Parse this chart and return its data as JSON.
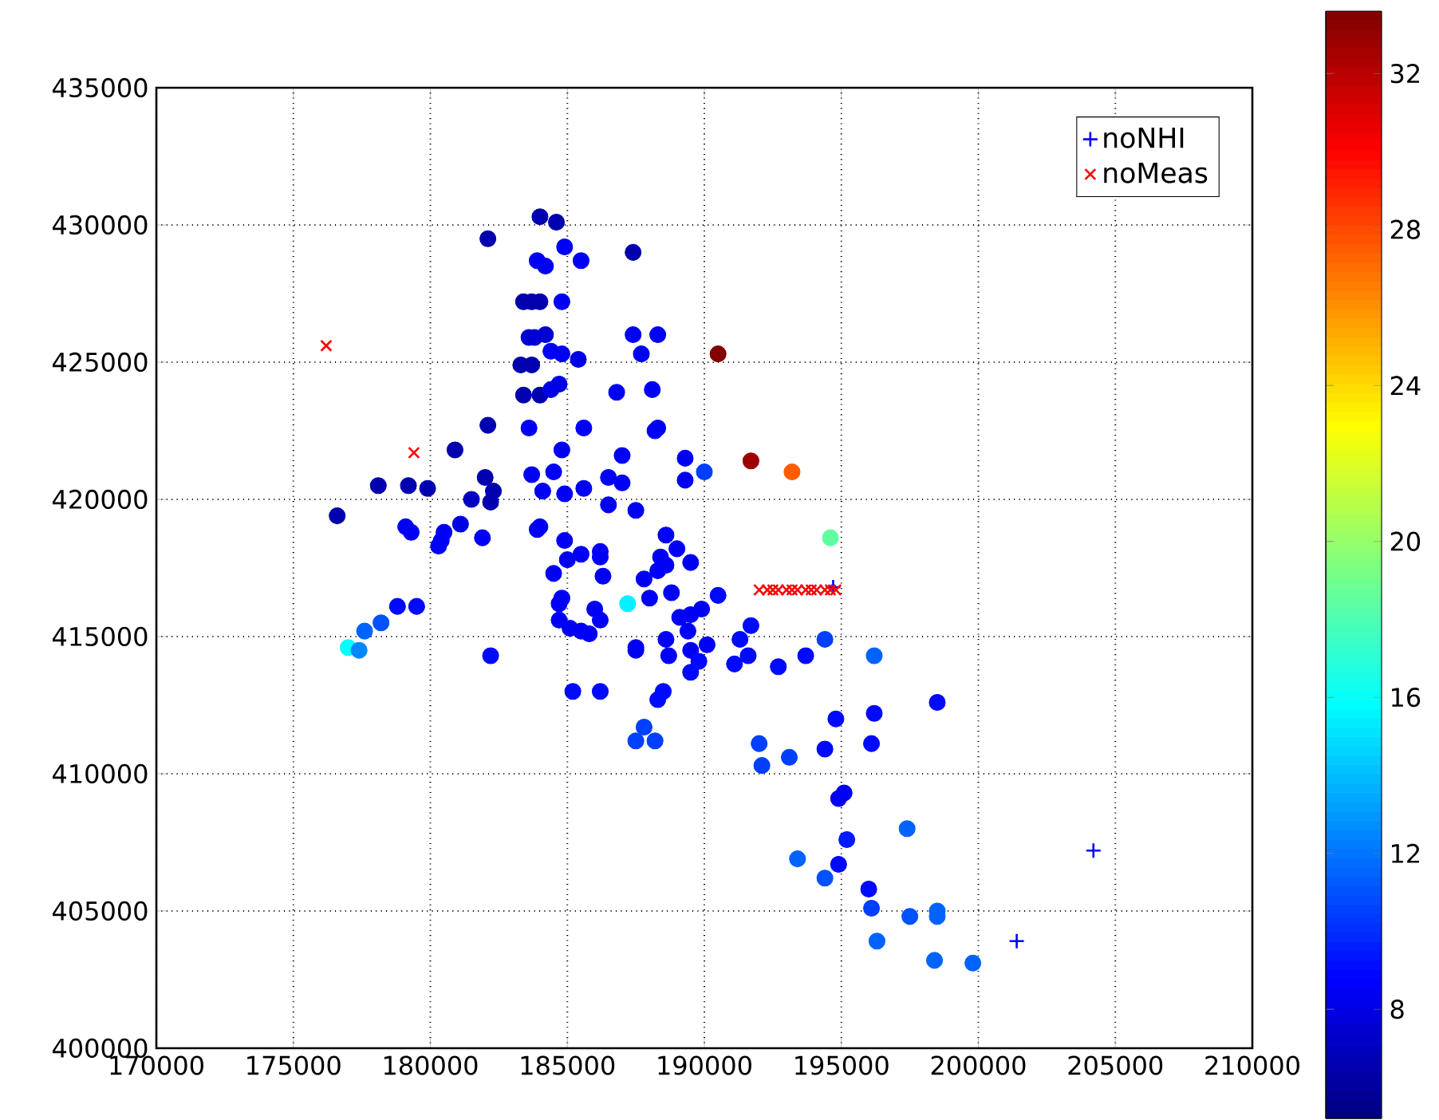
{
  "chart_data": {
    "type": "scatter",
    "xlim": [
      170000,
      210000
    ],
    "ylim": [
      400000,
      435000
    ],
    "xticks": [
      170000,
      175000,
      180000,
      185000,
      190000,
      195000,
      200000,
      205000,
      210000
    ],
    "yticks": [
      400000,
      405000,
      410000,
      415000,
      420000,
      425000,
      430000,
      435000
    ],
    "clim": [
      5.2,
      33.6
    ],
    "cticks": [
      8,
      12,
      16,
      20,
      24,
      28,
      32
    ],
    "grid": true,
    "legend": "top right",
    "series": [
      {
        "marker": "circle",
        "x": [
          184000,
          184600,
          182100,
          184900,
          183900,
          184200,
          185500,
          187400,
          183400,
          183700,
          184000,
          184800,
          183600,
          183800,
          184200,
          187400,
          188300,
          184400,
          184800,
          185400,
          187700,
          183300,
          183700,
          190500,
          183400,
          184000,
          184400,
          184700,
          186800,
          188100,
          182100,
          183600,
          185600,
          188200,
          188300,
          180900,
          184800,
          187000,
          189300,
          191700,
          190000,
          189300,
          193200,
          178100,
          179200,
          179900,
          182000,
          182300,
          181500,
          182200,
          183700,
          184500,
          184100,
          184900,
          185600,
          186500,
          187000,
          186500,
          187500,
          176600,
          179100,
          179300,
          180500,
          180400,
          180300,
          181100,
          181900,
          183900,
          184000,
          184900,
          185000,
          185500,
          186200,
          186200,
          184500,
          186300,
          187800,
          188600,
          189000,
          188400,
          188600,
          188300,
          189500,
          188800,
          188000,
          190500,
          187200,
          184800,
          184700,
          186000,
          186200,
          184700,
          185100,
          185500,
          185800,
          189100,
          189500,
          189900,
          189400,
          178800,
          179500,
          178200,
          177600,
          177000,
          177400,
          182200,
          188600,
          187500,
          187500,
          188700,
          189500,
          190100,
          189800,
          189500,
          191300,
          191700,
          191600,
          191100,
          192700,
          185200,
          186200,
          188500,
          188300,
          187800,
          187500,
          188200,
          192000,
          192100,
          194600,
          193700,
          194400,
          196200,
          198500,
          194800,
          196200,
          193100,
          194400,
          196100,
          195100,
          194900,
          197400,
          195200,
          193400,
          194900,
          194400,
          196000,
          196100,
          197500,
          198500,
          198500,
          196300,
          198400,
          199800
        ],
        "values": [
          430300,
          430100,
          429500,
          429200,
          428700,
          428500,
          428700,
          429000,
          427200,
          427200,
          427200,
          427200,
          425900,
          425900,
          426000,
          426000,
          426000,
          425400,
          425300,
          425100,
          425300,
          424900,
          424900,
          425300,
          423800,
          423800,
          424000,
          424200,
          423900,
          424000,
          422700,
          422600,
          422600,
          422500,
          422600,
          421800,
          421800,
          421600,
          421500,
          421400,
          421000,
          420700,
          421000,
          420500,
          420500,
          420400,
          420800,
          420300,
          420000,
          419900,
          420900,
          421000,
          420300,
          420200,
          420400,
          420800,
          420600,
          419800,
          419600,
          419400,
          419000,
          418800,
          418800,
          418500,
          418300,
          419100,
          418600,
          418900,
          419000,
          418500,
          417800,
          418000,
          418100,
          417900,
          417300,
          417200,
          417100,
          418700,
          418200,
          417900,
          417600,
          417400,
          417700,
          416600,
          416400,
          416500,
          416200,
          416400,
          416200,
          416000,
          415600,
          415600,
          415300,
          415200,
          415100,
          415700,
          415800,
          416000,
          415200,
          416100,
          416100,
          415500,
          415200,
          414600,
          414500,
          414300,
          414900,
          414600,
          414500,
          414300,
          414500,
          414700,
          414100,
          413700,
          414900,
          415400,
          414300,
          414000,
          413900,
          413000,
          413000,
          413000,
          412700,
          411700,
          411200,
          411200,
          411100,
          410300,
          418600,
          414300,
          414900,
          414300,
          412600,
          412000,
          412200,
          410600,
          410900,
          411100,
          409300,
          409100,
          408000,
          407600,
          406900,
          406700,
          406200,
          405800,
          405100,
          404800,
          405000,
          404800,
          403900,
          403200,
          403100
        ],
        "colors": [
          "#0000ae",
          "#0000ae",
          "#0000ae",
          "#0000f6",
          "#0000f6",
          "#0000f6",
          "#0000f6",
          "#0000ae",
          "#0000ae",
          "#0000ae",
          "#0000ae",
          "#0000f6",
          "#0000d2",
          "#0000d2",
          "#0000d2",
          "#0000f6",
          "#0000f6",
          "#0000f6",
          "#0000f6",
          "#0000e4",
          "#0000f6",
          "#0000ae",
          "#0000ae",
          "#830000",
          "#0000ae",
          "#0000ae",
          "#0000e4",
          "#0000e4",
          "#0000f6",
          "#0000f6",
          "#0000ae",
          "#0000f6",
          "#0000f6",
          "#0000f6",
          "#0000f6",
          "#0000ae",
          "#0000f6",
          "#0000f6",
          "#0000f6",
          "#9d0000",
          "#003fff",
          "#0000f6",
          "#ff5c00",
          "#0000ae",
          "#0000ae",
          "#0000ae",
          "#0000ae",
          "#0000ae",
          "#0000c0",
          "#0000ae",
          "#0000f6",
          "#0000f6",
          "#0000f6",
          "#0000f6",
          "#0000f6",
          "#0000f6",
          "#0000f6",
          "#0000f6",
          "#0000f6",
          "#0000ae",
          "#0000f6",
          "#0000f6",
          "#0000f6",
          "#0000f6",
          "#0000f6",
          "#0000e4",
          "#0000f6",
          "#0000f6",
          "#0000f6",
          "#0000f6",
          "#0000f6",
          "#0000f6",
          "#0000f6",
          "#0000f6",
          "#0000f6",
          "#0000f6",
          "#0000f6",
          "#0000f6",
          "#0000f6",
          "#0000f6",
          "#0000f6",
          "#0000f6",
          "#0000f6",
          "#0000f6",
          "#0000f6",
          "#0009ff",
          "#00f2ff",
          "#0000f6",
          "#0000f6",
          "#0000f6",
          "#0000f6",
          "#0000f6",
          "#0000f6",
          "#0000f6",
          "#0000f6",
          "#0000f6",
          "#0000f6",
          "#0000f6",
          "#0000f6",
          "#0009ff",
          "#0009ff",
          "#0051ff",
          "#0063ff",
          "#05fffa",
          "#0087ff",
          "#0009ff",
          "#0000f6",
          "#0000f6",
          "#0000f6",
          "#0000f6",
          "#0000f6",
          "#0000f6",
          "#0009ff",
          "#0009ff",
          "#0009ff",
          "#0009ff",
          "#0009ff",
          "#0009ff",
          "#0009ff",
          "#0009ff",
          "#0009ff",
          "#0009ff",
          "#0009ff",
          "#003fff",
          "#003fff",
          "#003fff",
          "#003fff",
          "#003fff",
          "#5fffa0",
          "#0009ff",
          "#003fff",
          "#0063ff",
          "#0009ff",
          "#0009ff",
          "#0009ff",
          "#003fff",
          "#0009ff",
          "#0009ff",
          "#0000f6",
          "#0000f6",
          "#0063ff",
          "#001bff",
          "#0063ff",
          "#0009ff",
          "#0051ff",
          "#0009ff",
          "#003fff",
          "#0051ff",
          "#0063ff",
          "#0063ff",
          "#0063ff",
          "#0063ff",
          "#0063ff"
        ],
        "cvalues": [
          6.5,
          6.5,
          6.5,
          8.5,
          8.5,
          8.5,
          8.5,
          6.5,
          6.5,
          6.5,
          6.5,
          8.5,
          7.5,
          7.5,
          7.5,
          8.5,
          8.5,
          8.5,
          8.5,
          8,
          8.5,
          6.5,
          6.5,
          33.5,
          6.5,
          6.5,
          8,
          8,
          8.5,
          8.5,
          6.5,
          8.5,
          8.5,
          8.5,
          8.5,
          6.5,
          8.5,
          8.5,
          8.5,
          32.8,
          10.5,
          8.5,
          27.5,
          6.5,
          6.5,
          6.5,
          6.5,
          6.5,
          7,
          6.5,
          8.5,
          8.5,
          8.5,
          8.5,
          8.5,
          8.5,
          8.5,
          8.5,
          8.5,
          6.5,
          8.5,
          8.5,
          8.5,
          8.5,
          8.5,
          8,
          8.5,
          8.5,
          8.5,
          8.5,
          8.5,
          8.5,
          8.5,
          8.5,
          8.5,
          8.5,
          8.5,
          8.5,
          8.5,
          8.5,
          8.5,
          8.5,
          8.5,
          8.5,
          8.5,
          9,
          15.5,
          8.5,
          8.5,
          8.5,
          8.5,
          8.5,
          8.5,
          8.5,
          8.5,
          8.5,
          8.5,
          8.5,
          8.5,
          9,
          9,
          11,
          11.5,
          16,
          12.5,
          9,
          8.5,
          8.5,
          8.5,
          8.5,
          8.5,
          8.5,
          9,
          9,
          9,
          9,
          9,
          9,
          9,
          9,
          9,
          9,
          9,
          10.5,
          10.5,
          10.5,
          10.5,
          10.5,
          18.5,
          9,
          10.5,
          11.5,
          9,
          9,
          9,
          10.5,
          9,
          9,
          8.5,
          8.5,
          11.5,
          9.5,
          11.5,
          9,
          11,
          9,
          10.5,
          11,
          11.5,
          11.5,
          11.5,
          11.5,
          11.5
        ]
      },
      {
        "name": "noNHI",
        "color": "#0000ff",
        "marker": "plus",
        "x": [
          194700,
          204200,
          201400
        ],
        "values": [
          416800,
          407200,
          403900
        ]
      },
      {
        "name": "noMeas",
        "color": "#ff0000",
        "marker": "cross",
        "x": [
          176200,
          179400,
          192000,
          192300,
          192500,
          192700,
          193000,
          193200,
          193400,
          193700,
          193900,
          194100,
          194400,
          194600,
          194800
        ],
        "values": [
          425600,
          421700,
          416700,
          416700,
          416700,
          416700,
          416700,
          416700,
          416700,
          416700,
          416700,
          416700,
          416700,
          416700,
          416700
        ]
      }
    ]
  }
}
